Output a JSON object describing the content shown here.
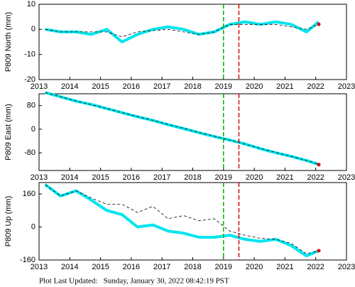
{
  "chart_data": [
    {
      "type": "line",
      "y_label": "P809 North (mm)",
      "xlim": [
        2013,
        2023
      ],
      "xticks": [
        2013,
        2014,
        2015,
        2016,
        2017,
        2018,
        2019,
        2020,
        2021,
        2022,
        2023
      ],
      "ylim": [
        -20,
        10
      ],
      "yticks": [
        -20,
        -10,
        0,
        10
      ],
      "x": [
        2013.2,
        2013.7,
        2014.2,
        2014.7,
        2015.2,
        2015.7,
        2016.2,
        2016.7,
        2017.2,
        2017.7,
        2018.2,
        2018.7,
        2019.2,
        2019.7,
        2020.2,
        2020.7,
        2021.2,
        2021.7,
        2022.1
      ],
      "series": [
        {
          "color": "#00e5ee",
          "style": "line",
          "values": [
            0,
            -1,
            -1,
            -2,
            0,
            -5,
            -2,
            0,
            1,
            0,
            -2,
            -1,
            2,
            3,
            2,
            3,
            2,
            -1,
            3
          ]
        },
        {
          "color": "#000000",
          "style": "dashed",
          "values": [
            0,
            -1,
            -1,
            -1,
            -1,
            -3,
            -1,
            -0.5,
            0,
            -1,
            -2,
            -1,
            2,
            2,
            2,
            2,
            1,
            0,
            2
          ]
        },
        {
          "color": "#e00000",
          "style": "points",
          "values": [
            null,
            null,
            null,
            null,
            null,
            null,
            null,
            null,
            null,
            null,
            null,
            null,
            null,
            null,
            null,
            null,
            null,
            null,
            2
          ]
        }
      ],
      "vlines": [
        {
          "x": 2019,
          "color": "#00b000"
        },
        {
          "x": 2019.5,
          "color": "#e00000"
        }
      ]
    },
    {
      "type": "line",
      "y_label": "P809 East (mm)",
      "xlim": [
        2013,
        2023
      ],
      "xticks": [
        2013,
        2014,
        2015,
        2016,
        2017,
        2018,
        2019,
        2020,
        2021,
        2022,
        2023
      ],
      "ylim": [
        -140,
        120
      ],
      "yticks": [
        -80,
        0,
        80
      ],
      "x": [
        2013.2,
        2013.7,
        2014.2,
        2014.7,
        2015.2,
        2015.7,
        2016.2,
        2016.7,
        2017.2,
        2017.7,
        2018.2,
        2018.7,
        2019.2,
        2019.7,
        2020.2,
        2020.7,
        2021.2,
        2021.7,
        2022.1
      ],
      "series": [
        {
          "color": "#00e5ee",
          "style": "line",
          "values": [
            124,
            110,
            95,
            84,
            70,
            56,
            42,
            30,
            15,
            2,
            -12,
            -25,
            -37,
            -50,
            -66,
            -80,
            -92,
            -106,
            -120
          ]
        },
        {
          "color": "#000000",
          "style": "dashed",
          "values": [
            124,
            110,
            96,
            83,
            70,
            56,
            43,
            30,
            16,
            3,
            -11,
            -24,
            -37,
            -51,
            -65,
            -79,
            -92,
            -106,
            -118
          ]
        },
        {
          "color": "#e00000",
          "style": "points",
          "values": [
            null,
            null,
            null,
            null,
            null,
            null,
            null,
            null,
            null,
            null,
            null,
            null,
            null,
            null,
            null,
            null,
            null,
            null,
            -120
          ]
        }
      ],
      "vlines": [
        {
          "x": 2019,
          "color": "#00b000"
        },
        {
          "x": 2019.5,
          "color": "#e00000"
        }
      ]
    },
    {
      "type": "line",
      "y_label": "P809 Up (mm)",
      "xlim": [
        2013,
        2023
      ],
      "xticks": [
        2013,
        2014,
        2015,
        2016,
        2017,
        2018,
        2019,
        2020,
        2021,
        2022,
        2023
      ],
      "ylim": [
        -160,
        215
      ],
      "yticks": [
        -160,
        0,
        160
      ],
      "x": [
        2013.2,
        2013.7,
        2014.2,
        2014.7,
        2015.2,
        2015.7,
        2016.2,
        2016.7,
        2017.2,
        2017.7,
        2018.2,
        2018.7,
        2019.2,
        2019.7,
        2020.2,
        2020.7,
        2021.2,
        2021.7,
        2022.1
      ],
      "series": [
        {
          "color": "#00e5ee",
          "style": "line",
          "values": [
            205,
            150,
            175,
            130,
            80,
            60,
            0,
            10,
            -20,
            -30,
            -50,
            -50,
            -40,
            -60,
            -70,
            -60,
            -90,
            -140,
            -115
          ]
        },
        {
          "color": "#000000",
          "style": "dashed",
          "values": [
            205,
            150,
            175,
            140,
            110,
            110,
            70,
            100,
            40,
            55,
            30,
            40,
            -20,
            -40,
            -55,
            -60,
            -80,
            -130,
            -115
          ]
        },
        {
          "color": "#e00000",
          "style": "points",
          "values": [
            null,
            null,
            null,
            null,
            null,
            null,
            null,
            null,
            null,
            null,
            null,
            null,
            null,
            null,
            null,
            null,
            null,
            null,
            -115
          ]
        }
      ],
      "vlines": [
        {
          "x": 2019,
          "color": "#00b000"
        },
        {
          "x": 2019.5,
          "color": "#e00000"
        }
      ]
    }
  ],
  "footer": "Plot Last Updated:   Sunday, January 30, 2022 08:42:19 PST"
}
